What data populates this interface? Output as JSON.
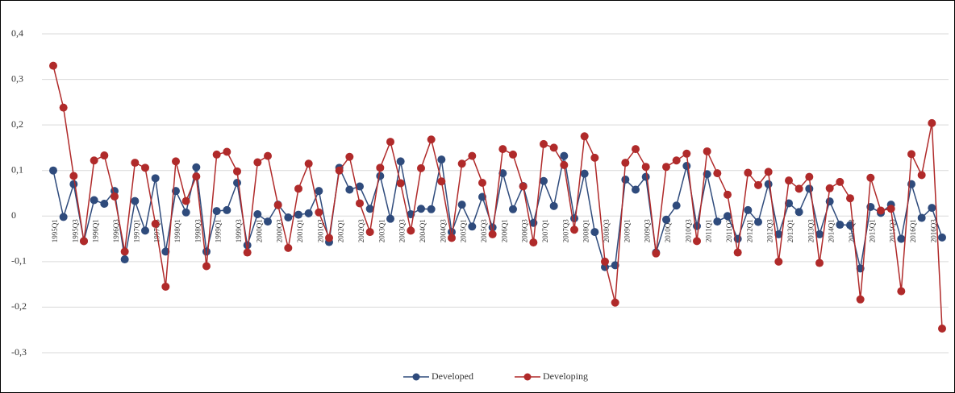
{
  "chart_data": {
    "type": "line",
    "categories": [
      "1995Q1",
      null,
      "1995Q3",
      null,
      "1996Q1",
      null,
      "1996Q3",
      null,
      "1997Q1",
      null,
      "1997Q3",
      null,
      "1998Q1",
      null,
      "1998Q3",
      null,
      "1999Q1",
      null,
      "1999Q3",
      null,
      "2000Q1",
      null,
      "2000Q3",
      null,
      "2001Q1",
      null,
      "2001Q3",
      null,
      "2002Q1",
      null,
      "2002Q3",
      null,
      "2003Q1",
      null,
      "2003Q3",
      null,
      "2004Q1",
      null,
      "2004Q3",
      null,
      "2005Q1",
      null,
      "2005Q3",
      null,
      "2006Q1",
      null,
      "2006Q3",
      null,
      "2007Q1",
      null,
      "2007Q3",
      null,
      "2008Q1",
      null,
      "2008Q3",
      null,
      "2009Q1",
      null,
      "2009Q3",
      null,
      "2010Q1",
      null,
      "2010Q3",
      null,
      "2011Q1",
      null,
      "2011Q3",
      null,
      "2012Q1",
      null,
      "2012Q3",
      null,
      "2013Q1",
      null,
      "2013Q3",
      null,
      "2014Q1",
      null,
      "2014Q3",
      null,
      "2015Q1",
      null,
      "2015Q3",
      null,
      "2016Q1",
      null,
      "2016Q3",
      null
    ],
    "series": [
      {
        "name": "Developed",
        "color": "#2f4b7c",
        "values": [
          0.1,
          -0.002,
          0.07,
          -0.055,
          0.035,
          0.027,
          0.055,
          -0.095,
          0.033,
          -0.032,
          0.083,
          -0.078,
          0.055,
          0.008,
          0.107,
          -0.078,
          0.011,
          0.013,
          0.073,
          -0.064,
          0.004,
          -0.012,
          0.025,
          -0.003,
          0.003,
          0.006,
          0.055,
          -0.057,
          0.106,
          0.058,
          0.065,
          0.016,
          0.088,
          -0.006,
          0.12,
          0.004,
          0.016,
          0.015,
          0.124,
          -0.035,
          0.025,
          -0.023,
          0.042,
          -0.025,
          0.094,
          0.015,
          0.066,
          -0.015,
          0.077,
          0.022,
          0.132,
          -0.005,
          0.093,
          -0.035,
          -0.112,
          -0.108,
          0.08,
          0.058,
          0.086,
          -0.08,
          -0.008,
          0.023,
          0.11,
          -0.022,
          0.092,
          -0.012,
          0.0,
          -0.05,
          0.013,
          -0.013,
          0.07,
          -0.04,
          0.028,
          0.009,
          0.06,
          -0.04,
          0.032,
          -0.019,
          -0.02,
          -0.115,
          0.02,
          0.007,
          0.025,
          -0.05,
          0.07,
          -0.004,
          0.018,
          -0.047
        ]
      },
      {
        "name": "Developing",
        "color": "#b02a2a",
        "values": [
          0.33,
          0.238,
          0.088,
          -0.055,
          0.122,
          0.133,
          0.043,
          -0.078,
          0.117,
          0.106,
          -0.017,
          -0.155,
          0.12,
          0.033,
          0.087,
          -0.11,
          0.135,
          0.141,
          0.098,
          -0.08,
          0.118,
          0.132,
          0.024,
          -0.07,
          0.06,
          0.115,
          0.008,
          -0.048,
          0.1,
          0.13,
          0.028,
          -0.035,
          0.106,
          0.163,
          0.072,
          -0.032,
          0.105,
          0.168,
          0.076,
          -0.048,
          0.115,
          0.132,
          0.073,
          -0.04,
          0.147,
          0.135,
          0.065,
          -0.058,
          0.158,
          0.15,
          0.112,
          -0.03,
          0.175,
          0.128,
          -0.1,
          -0.19,
          0.117,
          0.147,
          0.108,
          -0.082,
          0.108,
          0.122,
          0.137,
          -0.055,
          0.142,
          0.094,
          0.047,
          -0.08,
          0.095,
          0.068,
          0.097,
          -0.1,
          0.078,
          0.06,
          0.086,
          -0.103,
          0.061,
          0.075,
          0.039,
          -0.183,
          0.084,
          0.012,
          0.016,
          -0.165,
          0.136,
          0.09,
          0.204,
          -0.247
        ]
      }
    ],
    "ylim": [
      -0.3,
      0.4
    ],
    "yticks": [
      {
        "value": 0.4,
        "label": "0,4"
      },
      {
        "value": 0.3,
        "label": "0,3"
      },
      {
        "value": 0.2,
        "label": "0,2"
      },
      {
        "value": 0.1,
        "label": "0,1"
      },
      0,
      {
        "value": -0.1,
        "label": "-0,1"
      },
      {
        "value": -0.2,
        "label": "-0,2"
      },
      {
        "value": -0.3,
        "label": "-0,3"
      }
    ],
    "grid": true,
    "legend": "bottom"
  }
}
